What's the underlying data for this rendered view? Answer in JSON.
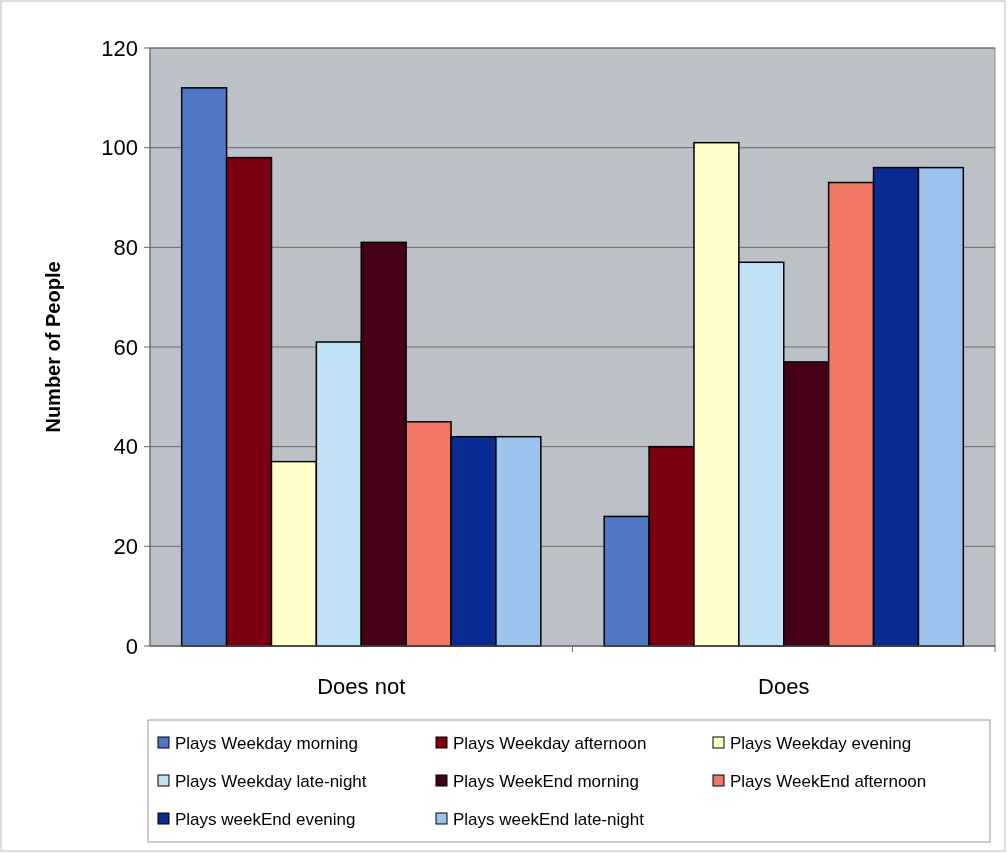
{
  "chart_data": {
    "type": "bar",
    "ylabel": "Number of People",
    "categories": [
      "Does not",
      "Does"
    ],
    "series": [
      {
        "name": "Plays Weekday morning",
        "color": "#4f78c4",
        "values": [
          112,
          26
        ]
      },
      {
        "name": "Plays Weekday afternoon",
        "color": "#7c0012",
        "values": [
          98,
          40
        ]
      },
      {
        "name": "Plays Weekday evening",
        "color": "#ffffcc",
        "values": [
          37,
          101
        ]
      },
      {
        "name": "Plays Weekday late-night",
        "color": "#c0e2f7",
        "values": [
          61,
          77
        ]
      },
      {
        "name": "Plays WeekEnd morning",
        "color": "#460016",
        "values": [
          81,
          57
        ]
      },
      {
        "name": "Plays WeekEnd afternoon",
        "color": "#f07763",
        "values": [
          45,
          93
        ]
      },
      {
        "name": "Plays weekEnd evening",
        "color": "#0a2a94",
        "values": [
          42,
          96
        ]
      },
      {
        "name": "Plays weekEnd late-night",
        "color": "#9cc2ee",
        "values": [
          42,
          96
        ]
      }
    ],
    "ylim": [
      0,
      120
    ],
    "yticks": [
      0,
      20,
      40,
      60,
      80,
      100,
      120
    ],
    "grid": "y",
    "legend": "bottom"
  }
}
